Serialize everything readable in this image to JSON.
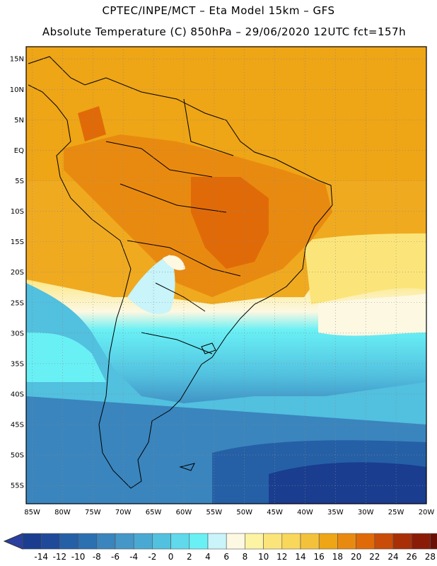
{
  "header": {
    "line1": "CPTEC/INPE/MCT –  Eta Model 15km – GFS",
    "line2": "Absolute Temperature (C) 850hPa – 29/06/2020 12UTC fct=157h"
  },
  "map": {
    "variable": "Absolute Temperature (C) 850hPa",
    "lat_range": [
      -58,
      17
    ],
    "lon_range": [
      -86,
      -20
    ],
    "lat_ticks": [
      "15N",
      "10N",
      "5N",
      "EQ",
      "5S",
      "10S",
      "15S",
      "20S",
      "25S",
      "30S",
      "35S",
      "40S",
      "45S",
      "50S",
      "55S"
    ],
    "lat_values": [
      15,
      10,
      5,
      0,
      -5,
      -10,
      -15,
      -20,
      -25,
      -30,
      -35,
      -40,
      -45,
      -50,
      -55
    ],
    "lon_ticks": [
      "85W",
      "80W",
      "75W",
      "70W",
      "65W",
      "60W",
      "55W",
      "50W",
      "45W",
      "40W",
      "35W",
      "30W",
      "25W",
      "20W"
    ],
    "lon_values": [
      -85,
      -80,
      -75,
      -70,
      -65,
      -60,
      -55,
      -50,
      -45,
      -40,
      -35,
      -30,
      -25,
      -20
    ]
  },
  "colorbar": {
    "labels": [
      "-14",
      "-12",
      "-10",
      "-8",
      "-6",
      "-4",
      "-2",
      "0",
      "2",
      "4",
      "6",
      "8",
      "10",
      "12",
      "14",
      "16",
      "18",
      "20",
      "22",
      "24",
      "26",
      "28"
    ],
    "colors": [
      "#1a3d8f",
      "#1f4a99",
      "#2560a6",
      "#2b70b0",
      "#3a85bd",
      "#4597c8",
      "#4aa9d2",
      "#52c0df",
      "#5fd9eb",
      "#69f0f5",
      "#c8f4fa",
      "#fdf8e2",
      "#fcf3a3",
      "#fbe57a",
      "#f8d75b",
      "#f4c23a",
      "#eea516",
      "#e98a10",
      "#e06a08",
      "#c94c08",
      "#a92f07",
      "#8a1c07",
      "#6a0f06"
    ],
    "under_color": "#2a3fa0",
    "over_color": "#6b0e1c"
  }
}
